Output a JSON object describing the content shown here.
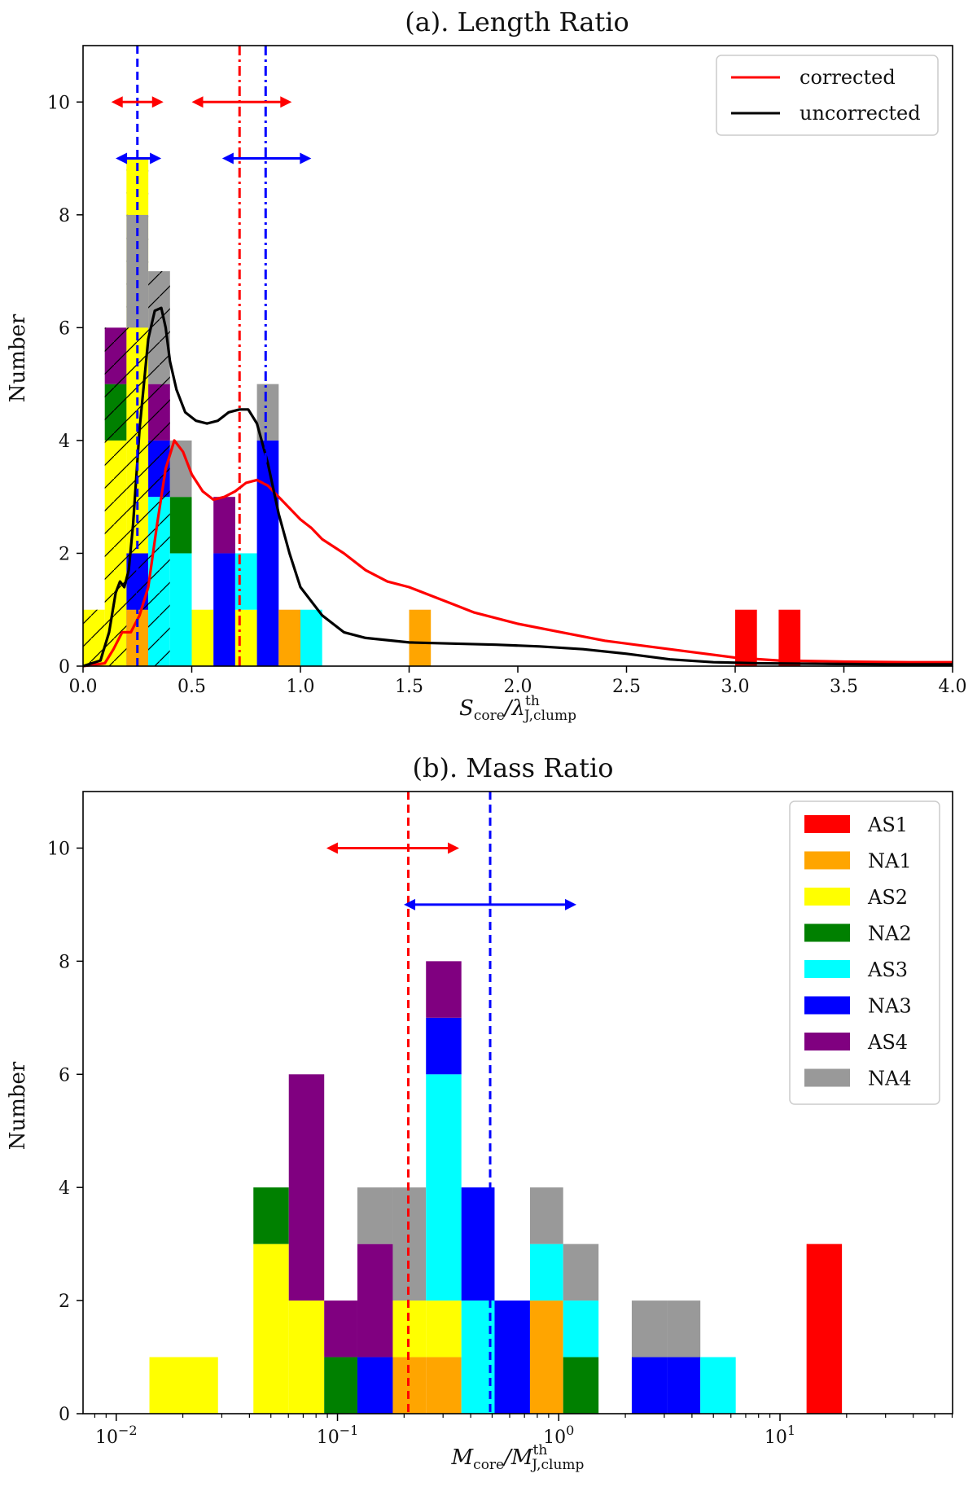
{
  "colors": {
    "AS1": "#ff0000",
    "NA1": "#ffa500",
    "AS2": "#ffff00",
    "NA2": "#008000",
    "AS3": "#00ffff",
    "NA3": "#0000ff",
    "AS4": "#800080",
    "NA4": "#999999",
    "corrected": "#ff0000",
    "uncorrected": "#000000",
    "blue": "#0000ff",
    "red": "#ff0000"
  },
  "chart_data": [
    {
      "panel": "a",
      "type": "bar",
      "title": "(a). Length Ratio",
      "xlabel": "S_core/λ^th_J,clump",
      "xlabel_parts": {
        "base": "S",
        "sub1": "core",
        "mid": "/λ",
        "sup2": "th",
        "sub2": "J,clump"
      },
      "ylabel": "Number",
      "xlim": [
        0.0,
        4.0
      ],
      "ylim": [
        0,
        11
      ],
      "xticks": [
        0.0,
        0.5,
        1.0,
        1.5,
        2.0,
        2.5,
        3.0,
        3.5,
        4.0
      ],
      "xtick_labels": [
        "0.0",
        "0.5",
        "1.0",
        "1.5",
        "2.0",
        "2.5",
        "3.0",
        "3.5",
        "4.0"
      ],
      "yticks": [
        0,
        2,
        4,
        6,
        8,
        10
      ],
      "ytick_labels": [
        "0",
        "2",
        "4",
        "6",
        "8",
        "10"
      ],
      "bin_width": 0.1,
      "stacks": [
        {
          "left": 0.0,
          "segments": [
            [
              "AS2",
              1
            ]
          ],
          "hatch": true
        },
        {
          "left": 0.1,
          "segments": [
            [
              "AS2",
              4
            ],
            [
              "NA2",
              1
            ],
            [
              "AS4",
              1
            ]
          ],
          "hatch": true
        },
        {
          "left": 0.2,
          "segments": [
            [
              "NA3",
              2
            ],
            [
              "AS2",
              7
            ]
          ],
          "hatch": true
        },
        {
          "left": 0.2,
          "segments": [
            [
              "NA1",
              1
            ]
          ],
          "hatch": false
        },
        {
          "left": 0.2,
          "segments": [
            [
              "NA3",
              2
            ],
            [
              "AS2",
              2
            ],
            [
              "NA2",
              1
            ],
            [
              "AS4",
              1
            ],
            [
              "NA4",
              2
            ]
          ],
          "hatch": false,
          "outline_only": true
        },
        {
          "left": 0.3,
          "segments": [
            [
              "AS3",
              3
            ],
            [
              "NA3",
              1
            ],
            [
              "AS4",
              1
            ],
            [
              "NA4",
              2
            ]
          ],
          "hatch": true
        },
        {
          "left": 0.4,
          "segments": [
            [
              "AS3",
              2
            ],
            [
              "NA2",
              1
            ],
            [
              "AS4",
              0
            ],
            [
              "NA4",
              1
            ]
          ],
          "hatch": false
        },
        {
          "left": 0.5,
          "segments": [
            [
              "AS2",
              1
            ]
          ],
          "hatch": false
        },
        {
          "left": 0.6,
          "segments": [
            [
              "NA3",
              2
            ],
            [
              "AS4",
              1
            ]
          ],
          "hatch": false
        },
        {
          "left": 0.7,
          "segments": [
            [
              "AS2",
              1
            ],
            [
              "AS3",
              1
            ]
          ],
          "hatch": false
        },
        {
          "left": 0.8,
          "segments": [
            [
              "NA3",
              4
            ],
            [
              "NA4",
              1
            ]
          ],
          "hatch": false
        },
        {
          "left": 0.9,
          "segments": [
            [
              "NA1",
              1
            ]
          ],
          "hatch": false
        },
        {
          "left": 1.0,
          "segments": [
            [
              "AS3",
              1
            ]
          ],
          "hatch": false
        },
        {
          "left": 1.5,
          "segments": [
            [
              "NA1",
              1
            ]
          ],
          "hatch": false
        },
        {
          "left": 3.0,
          "segments": [
            [
              "AS1",
              1
            ]
          ],
          "hatch": false
        },
        {
          "left": 3.2,
          "segments": [
            [
              "AS1",
              1
            ]
          ],
          "hatch": false
        }
      ],
      "curves": [
        {
          "name": "corrected",
          "color_key": "corrected",
          "x": [
            0.0,
            0.1,
            0.14,
            0.18,
            0.22,
            0.26,
            0.3,
            0.34,
            0.38,
            0.42,
            0.46,
            0.5,
            0.55,
            0.6,
            0.65,
            0.7,
            0.75,
            0.8,
            0.85,
            0.9,
            0.95,
            1.0,
            1.05,
            1.1,
            1.2,
            1.3,
            1.4,
            1.5,
            1.6,
            1.7,
            1.8,
            1.9,
            2.0,
            2.2,
            2.4,
            2.6,
            2.8,
            3.0,
            3.2,
            3.5,
            3.8,
            4.0
          ],
          "y": [
            0.0,
            0.05,
            0.3,
            0.6,
            0.6,
            0.9,
            1.4,
            2.5,
            3.5,
            4.0,
            3.8,
            3.4,
            3.1,
            2.95,
            3.0,
            3.1,
            3.25,
            3.3,
            3.2,
            3.0,
            2.8,
            2.6,
            2.45,
            2.25,
            2.0,
            1.7,
            1.5,
            1.4,
            1.25,
            1.1,
            0.95,
            0.85,
            0.75,
            0.6,
            0.45,
            0.35,
            0.25,
            0.15,
            0.1,
            0.08,
            0.07,
            0.07
          ]
        },
        {
          "name": "uncorrected",
          "color_key": "uncorrected",
          "x": [
            0.0,
            0.08,
            0.12,
            0.15,
            0.17,
            0.19,
            0.21,
            0.23,
            0.26,
            0.3,
            0.33,
            0.36,
            0.38,
            0.4,
            0.43,
            0.47,
            0.52,
            0.57,
            0.62,
            0.67,
            0.72,
            0.76,
            0.8,
            0.85,
            0.9,
            0.95,
            1.0,
            1.1,
            1.2,
            1.3,
            1.5,
            1.7,
            1.9,
            2.1,
            2.3,
            2.5,
            2.7,
            2.9,
            3.1,
            3.4,
            3.7,
            4.0
          ],
          "y": [
            0.0,
            0.1,
            0.6,
            1.3,
            1.5,
            1.4,
            1.7,
            2.5,
            4.2,
            5.8,
            6.3,
            6.35,
            6.0,
            5.4,
            4.9,
            4.5,
            4.35,
            4.3,
            4.35,
            4.5,
            4.55,
            4.55,
            4.3,
            3.6,
            2.7,
            2.0,
            1.4,
            0.9,
            0.6,
            0.5,
            0.42,
            0.4,
            0.38,
            0.35,
            0.3,
            0.22,
            0.12,
            0.07,
            0.05,
            0.04,
            0.03,
            0.03
          ]
        }
      ],
      "vlines": [
        {
          "x": 0.25,
          "color_key": "blue",
          "style": "dashed"
        },
        {
          "x": 0.72,
          "color_key": "red",
          "style": "dashdot"
        },
        {
          "x": 0.84,
          "color_key": "blue",
          "style": "dashdot"
        }
      ],
      "arrows": [
        {
          "x1": 0.13,
          "x2": 0.37,
          "y": 10.0,
          "color_key": "red"
        },
        {
          "x1": 0.5,
          "x2": 0.96,
          "y": 10.0,
          "color_key": "red"
        },
        {
          "x1": 0.15,
          "x2": 0.36,
          "y": 9.0,
          "color_key": "blue"
        },
        {
          "x1": 0.64,
          "x2": 1.05,
          "y": 9.0,
          "color_key": "blue"
        }
      ],
      "legend": {
        "position": "upper right",
        "entries": [
          {
            "label": "corrected",
            "color_key": "corrected"
          },
          {
            "label": "uncorrected",
            "color_key": "uncorrected"
          }
        ]
      }
    },
    {
      "panel": "b",
      "type": "bar",
      "scale_x": "log",
      "title": "(b). Mass Ratio",
      "xlabel": "M_core/M^th_J,clump",
      "xlabel_parts": {
        "base": "M",
        "sub1": "core",
        "mid": "/M",
        "sup2": "th",
        "sub2": "J,clump"
      },
      "ylabel": "Number",
      "xlim_log10": [
        -2.15,
        1.78
      ],
      "ylim": [
        0,
        11
      ],
      "xticks_log10": [
        -2,
        -1,
        0,
        1
      ],
      "xtick_bases": [
        "10",
        "10",
        "10",
        "10"
      ],
      "xtick_exps": [
        "−2",
        "−1",
        "0",
        "1"
      ],
      "yticks": [
        0,
        2,
        4,
        6,
        8,
        10
      ],
      "ytick_labels": [
        "0",
        "2",
        "4",
        "6",
        "8",
        "10"
      ],
      "bars_log10": [
        {
          "lo": -1.85,
          "hi": -1.54,
          "segments": [
            [
              "AS2",
              1
            ]
          ]
        },
        {
          "lo": -1.38,
          "hi": -1.22,
          "segments": [
            [
              "AS2",
              3
            ],
            [
              "NA2",
              1
            ]
          ]
        },
        {
          "lo": -1.22,
          "hi": -1.06,
          "segments": [
            [
              "AS2",
              2
            ],
            [
              "AS4",
              4
            ]
          ]
        },
        {
          "lo": -1.06,
          "hi": -0.91,
          "segments": [
            [
              "NA2",
              1
            ],
            [
              "AS4",
              1
            ]
          ]
        },
        {
          "lo": -0.91,
          "hi": -0.75,
          "segments": [
            [
              "NA3",
              1
            ],
            [
              "AS4",
              2
            ],
            [
              "NA4",
              1
            ]
          ]
        },
        {
          "lo": -0.75,
          "hi": -0.6,
          "segments": [
            [
              "NA1",
              1
            ],
            [
              "AS2",
              1
            ],
            [
              "NA4",
              2
            ]
          ]
        },
        {
          "lo": -0.6,
          "hi": -0.44,
          "segments": [
            [
              "NA1",
              1
            ],
            [
              "AS2",
              1
            ],
            [
              "AS3",
              4
            ],
            [
              "NA3",
              1
            ],
            [
              "AS4",
              1
            ]
          ]
        },
        {
          "lo": -0.44,
          "hi": -0.29,
          "segments": [
            [
              "NA2",
              0
            ],
            [
              "AS3",
              2
            ],
            [
              "NA3",
              2
            ]
          ]
        },
        {
          "lo": -0.29,
          "hi": -0.13,
          "segments": [
            [
              "NA3",
              2
            ]
          ]
        },
        {
          "lo": -0.13,
          "hi": 0.02,
          "segments": [
            [
              "NA1",
              2
            ],
            [
              "AS3",
              1
            ],
            [
              "NA4",
              1
            ]
          ]
        },
        {
          "lo": 0.02,
          "hi": 0.18,
          "segments": [
            [
              "NA2",
              1
            ],
            [
              "AS3",
              1
            ],
            [
              "NA4",
              1
            ]
          ]
        },
        {
          "lo": 0.33,
          "hi": 0.49,
          "segments": [
            [
              "NA3",
              1
            ],
            [
              "NA4",
              1
            ]
          ]
        },
        {
          "lo": 0.49,
          "hi": 0.64,
          "segments": [
            [
              "NA3",
              1
            ],
            [
              "NA4",
              1
            ]
          ]
        },
        {
          "lo": 0.64,
          "hi": 0.8,
          "segments": [
            [
              "AS3",
              1
            ]
          ]
        },
        {
          "lo": 1.12,
          "hi": 1.28,
          "segments": [
            [
              "AS1",
              3
            ]
          ]
        }
      ],
      "vlines_log10": [
        {
          "x": -0.68,
          "color_key": "red",
          "style": "dashed"
        },
        {
          "x": -0.31,
          "color_key": "blue",
          "style": "dashed"
        }
      ],
      "arrows_log10": [
        {
          "x1": -1.05,
          "x2": -0.45,
          "y": 10.0,
          "color_key": "red"
        },
        {
          "x1": -0.7,
          "x2": 0.08,
          "y": 9.0,
          "color_key": "blue"
        }
      ],
      "legend": {
        "position": "upper right",
        "entries": [
          {
            "label": "AS1",
            "color_key": "AS1"
          },
          {
            "label": "NA1",
            "color_key": "NA1"
          },
          {
            "label": "AS2",
            "color_key": "AS2"
          },
          {
            "label": "NA2",
            "color_key": "NA2"
          },
          {
            "label": "AS3",
            "color_key": "AS3"
          },
          {
            "label": "NA3",
            "color_key": "NA3"
          },
          {
            "label": "AS4",
            "color_key": "AS4"
          },
          {
            "label": "NA4",
            "color_key": "NA4"
          }
        ]
      }
    }
  ]
}
